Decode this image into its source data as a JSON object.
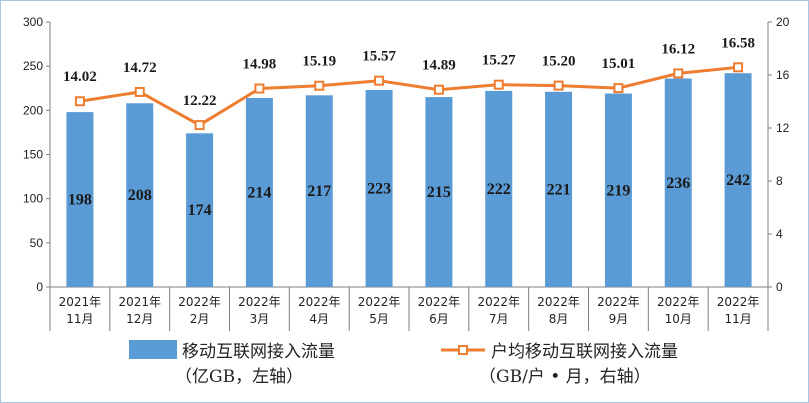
{
  "chart_data": {
    "type": "bar",
    "categories": [
      [
        "2021年",
        "11月"
      ],
      [
        "2021年",
        "12月"
      ],
      [
        "2022年",
        "2月"
      ],
      [
        "2022年",
        "3月"
      ],
      [
        "2022年",
        "4月"
      ],
      [
        "2022年",
        "5月"
      ],
      [
        "2022年",
        "6月"
      ],
      [
        "2022年",
        "7月"
      ],
      [
        "2022年",
        "8月"
      ],
      [
        "2022年",
        "9月"
      ],
      [
        "2022年",
        "10月"
      ],
      [
        "2022年",
        "11月"
      ]
    ],
    "series": [
      {
        "name": "移动互联网接入流量",
        "name_line2": "（亿GB，左轴）",
        "type": "bar",
        "axis": "left",
        "color": "#5b9bd5",
        "values": [
          198,
          208,
          174,
          214,
          217,
          223,
          215,
          222,
          221,
          219,
          236,
          242
        ],
        "labels": [
          "198",
          "208",
          "174",
          "214",
          "217",
          "223",
          "215",
          "222",
          "221",
          "219",
          "236",
          "242"
        ]
      },
      {
        "name": "户均移动互联网接入流量",
        "name_line2": "（GB/户 • 月，右轴）",
        "type": "line",
        "axis": "right",
        "color": "#ed7d31",
        "values": [
          14.02,
          14.72,
          12.22,
          14.98,
          15.19,
          15.57,
          14.89,
          15.27,
          15.2,
          15.01,
          16.12,
          16.58
        ],
        "labels": [
          "14.02",
          "14.72",
          "12.22",
          "14.98",
          "15.19",
          "15.57",
          "14.89",
          "15.27",
          "15.20",
          "15.01",
          "16.12",
          "16.58"
        ]
      }
    ],
    "y_left": {
      "ylim": [
        0,
        300
      ],
      "ticks": [
        "0",
        "50",
        "100",
        "150",
        "200",
        "250",
        "300"
      ]
    },
    "y_right": {
      "ylim": [
        0,
        20
      ],
      "ticks": [
        "0",
        "4",
        "8",
        "12",
        "16",
        "20"
      ]
    },
    "legend_position": "bottom",
    "grid": false
  }
}
